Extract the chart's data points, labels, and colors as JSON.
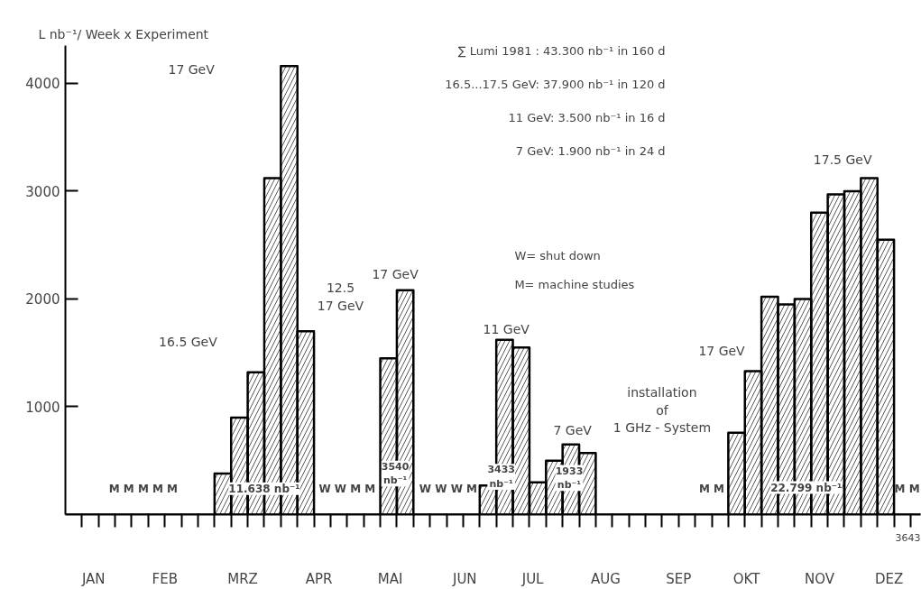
{
  "chart_data": {
    "type": "bar",
    "ylabel": "L nb⁻¹/ Week x Experiment",
    "categories": [
      null,
      null,
      null,
      null,
      null,
      null,
      null,
      null,
      null,
      null,
      null,
      null,
      null,
      null,
      null,
      null,
      null,
      null,
      null,
      null,
      null,
      null,
      null,
      null,
      null,
      null,
      null,
      null,
      null,
      null,
      null,
      null,
      null,
      null,
      null,
      null,
      null,
      null,
      null,
      null,
      null,
      null,
      null,
      null,
      null,
      null,
      null,
      null,
      null,
      null,
      null,
      null
    ],
    "series": [
      {
        "color": "#000000",
        "values": [
          0,
          0,
          0,
          0,
          0,
          0,
          0,
          0,
          0,
          380,
          900,
          1320,
          3120,
          4160,
          1700,
          0,
          0,
          0,
          0,
          1450,
          2080,
          0,
          0,
          0,
          0,
          270,
          1620,
          1550,
          300,
          500,
          650,
          570,
          0,
          0,
          0,
          0,
          0,
          0,
          0,
          0,
          760,
          1330,
          2020,
          1950,
          2000,
          2800,
          2970,
          3000,
          3120,
          2550,
          0,
          0
        ]
      }
    ],
    "ylim": [
      0,
      4350
    ],
    "yticks": [
      1000,
      2000,
      3000,
      4000
    ],
    "grid": false,
    "annotations": [
      "∑ Lumi 1981 : 43.300 nb⁻¹ in 160 d",
      "16.5...17.5 GeV: 37.900 nb⁻¹ in 120 d",
      "11 GeV: 3.500 nb⁻¹ in 16 d",
      "7 GeV: 1.900 nb⁻¹ in 24 d",
      "W= shut down",
      "M= machine studies",
      "3643",
      "JAN",
      "FEB",
      "MRZ",
      "APR",
      "MAI",
      "JUN",
      "JUL",
      "AUG",
      "SEP",
      "OKT",
      "NOV",
      "DEZ",
      "17 GeV",
      "16.5 GeV",
      "12.5\n17 GeV",
      "17 GeV",
      "11 GeV",
      "7 GeV",
      "installation\nof\n1 GHz - System",
      "17 GeV",
      "17.5 GeV",
      "11.638 nb⁻¹",
      "3540\nnb⁻¹",
      "3433\nnb⁻¹",
      "1933\nnb⁻¹",
      "22.799 nb⁻¹",
      "M M M M M",
      "W W M M",
      "W W W M",
      "M M",
      "M M"
    ]
  }
}
